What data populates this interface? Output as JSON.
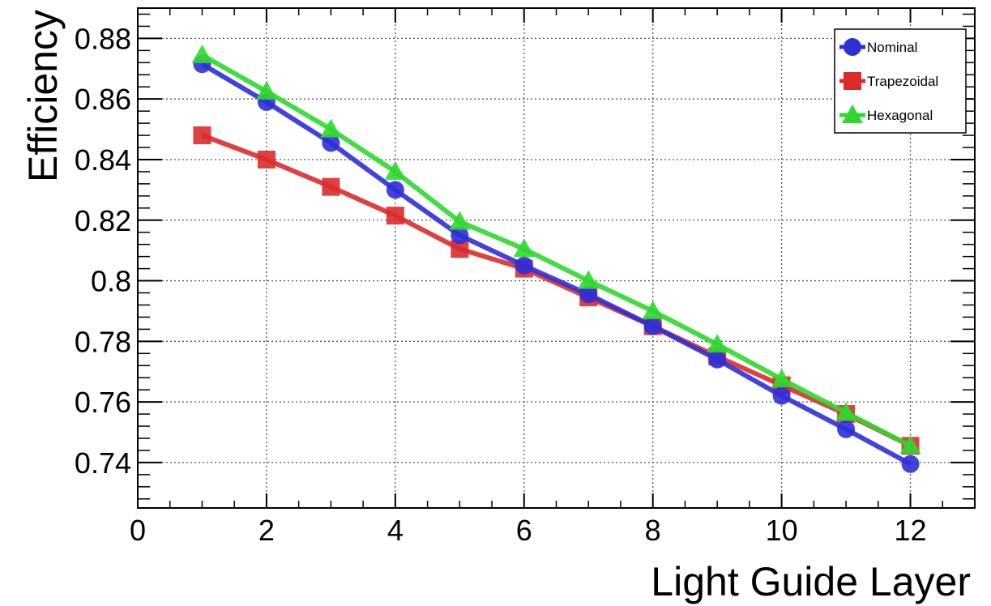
{
  "chart_data": {
    "type": "line",
    "xlabel": "Light Guide Layer",
    "ylabel": "Efficiency",
    "xlim": [
      0,
      13
    ],
    "ylim": [
      0.725,
      0.89
    ],
    "x_ticks": [
      "0",
      "2",
      "4",
      "6",
      "8",
      "10",
      "12"
    ],
    "y_ticks": [
      "0.74",
      "0.76",
      "0.78",
      "0.8",
      "0.82",
      "0.84",
      "0.86",
      "0.88"
    ],
    "grid": true,
    "legend_position": "top-right",
    "x": [
      1,
      2,
      3,
      4,
      5,
      6,
      7,
      8,
      9,
      10,
      11,
      12
    ],
    "series": [
      {
        "name": "Nominal",
        "marker": "circle",
        "color": "#2f2fd8",
        "values": [
          0.8715,
          0.859,
          0.8455,
          0.83,
          0.815,
          0.805,
          0.7955,
          0.785,
          0.774,
          0.762,
          0.751,
          0.7395
        ]
      },
      {
        "name": "Trapezoidal",
        "marker": "square",
        "color": "#dc2b2b",
        "values": [
          0.848,
          0.84,
          0.831,
          0.8215,
          0.8105,
          0.804,
          0.7945,
          0.785,
          0.775,
          0.7655,
          0.756,
          0.7455
        ]
      },
      {
        "name": "Hexagonal",
        "marker": "triangle",
        "color": "#2fd82f",
        "values": [
          0.8745,
          0.8625,
          0.85,
          0.836,
          0.8195,
          0.8105,
          0.8,
          0.79,
          0.779,
          0.7675,
          0.7565,
          0.7455
        ]
      }
    ]
  }
}
